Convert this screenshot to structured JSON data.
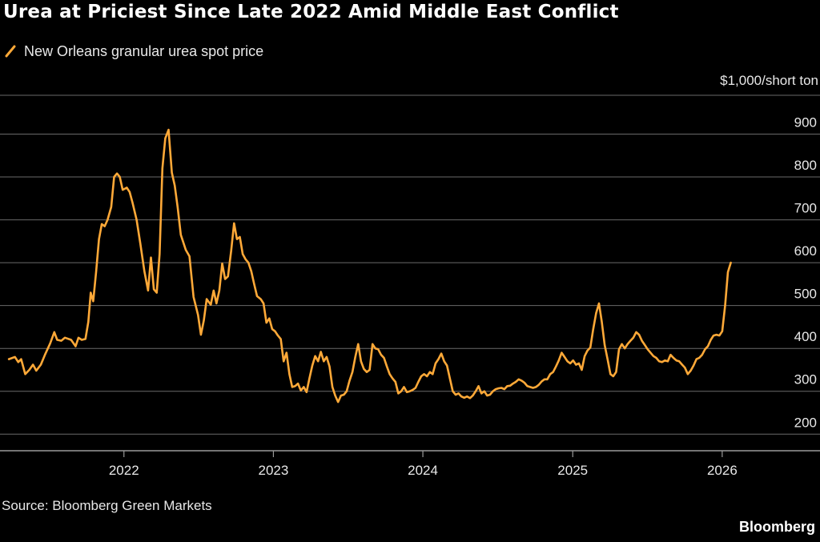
{
  "title": "Urea at Priciest Since Late 2022 Amid Middle East Conflict",
  "unit_label": "$1,000/short ton",
  "source": "Source: Bloomberg Green Markets",
  "brand": "Bloomberg",
  "colors": {
    "background": "#000000",
    "line": "#ffa938",
    "grid": "#6a6a6a",
    "text": "#e8e8e8"
  },
  "chart_data": {
    "type": "line",
    "title": "Urea at Priciest Since Late 2022 Amid Middle East Conflict",
    "ylabel": "$1,000/short ton",
    "ylim": [
      180,
      970
    ],
    "yticks": [
      200,
      300,
      400,
      500,
      600,
      700,
      800,
      900
    ],
    "xlim": [
      "2021-03-20",
      "2026-08-20"
    ],
    "xticks": [
      "2022",
      "2023",
      "2024",
      "2025",
      "2026"
    ],
    "grid": "horizontal",
    "legend": "top-left",
    "series": [
      {
        "name": "New Orleans granular urea spot price",
        "color": "#ffa938",
        "points": [
          [
            "2021-03-26",
            375
          ],
          [
            "2021-04-10",
            380
          ],
          [
            "2021-04-18",
            368
          ],
          [
            "2021-04-25",
            375
          ],
          [
            "2021-05-05",
            340
          ],
          [
            "2021-05-15",
            350
          ],
          [
            "2021-05-24",
            362
          ],
          [
            "2021-06-01",
            348
          ],
          [
            "2021-06-12",
            362
          ],
          [
            "2021-06-22",
            385
          ],
          [
            "2021-07-05",
            412
          ],
          [
            "2021-07-15",
            438
          ],
          [
            "2021-07-22",
            420
          ],
          [
            "2021-08-01",
            418
          ],
          [
            "2021-08-10",
            425
          ],
          [
            "2021-08-25",
            420
          ],
          [
            "2021-09-05",
            405
          ],
          [
            "2021-09-12",
            425
          ],
          [
            "2021-09-20",
            420
          ],
          [
            "2021-09-29",
            422
          ],
          [
            "2021-10-06",
            462
          ],
          [
            "2021-10-12",
            530
          ],
          [
            "2021-10-18",
            510
          ],
          [
            "2021-10-25",
            578
          ],
          [
            "2021-11-01",
            655
          ],
          [
            "2021-11-08",
            690
          ],
          [
            "2021-11-15",
            685
          ],
          [
            "2021-11-22",
            700
          ],
          [
            "2021-12-01",
            730
          ],
          [
            "2021-12-08",
            800
          ],
          [
            "2021-12-15",
            808
          ],
          [
            "2021-12-22",
            800
          ],
          [
            "2021-12-29",
            770
          ],
          [
            "2022-01-08",
            775
          ],
          [
            "2022-01-15",
            765
          ],
          [
            "2022-01-22",
            740
          ],
          [
            "2022-02-01",
            700
          ],
          [
            "2022-02-10",
            645
          ],
          [
            "2022-02-20",
            580
          ],
          [
            "2022-03-01",
            535
          ],
          [
            "2022-03-08",
            612
          ],
          [
            "2022-03-15",
            538
          ],
          [
            "2022-03-22",
            530
          ],
          [
            "2022-03-29",
            620
          ],
          [
            "2022-04-05",
            820
          ],
          [
            "2022-04-12",
            890
          ],
          [
            "2022-04-20",
            910
          ],
          [
            "2022-04-28",
            810
          ],
          [
            "2022-05-05",
            780
          ],
          [
            "2022-05-12",
            730
          ],
          [
            "2022-05-20",
            665
          ],
          [
            "2022-06-01",
            630
          ],
          [
            "2022-06-10",
            615
          ],
          [
            "2022-06-20",
            520
          ],
          [
            "2022-07-01",
            478
          ],
          [
            "2022-07-08",
            432
          ],
          [
            "2022-07-15",
            465
          ],
          [
            "2022-07-22",
            515
          ],
          [
            "2022-08-01",
            502
          ],
          [
            "2022-08-08",
            535
          ],
          [
            "2022-08-15",
            505
          ],
          [
            "2022-08-22",
            535
          ],
          [
            "2022-08-29",
            598
          ],
          [
            "2022-09-05",
            562
          ],
          [
            "2022-09-12",
            568
          ],
          [
            "2022-09-20",
            628
          ],
          [
            "2022-09-27",
            692
          ],
          [
            "2022-10-04",
            655
          ],
          [
            "2022-10-11",
            660
          ],
          [
            "2022-10-18",
            620
          ],
          [
            "2022-10-25",
            608
          ],
          [
            "2022-11-01",
            600
          ],
          [
            "2022-11-08",
            580
          ],
          [
            "2022-11-15",
            550
          ],
          [
            "2022-11-22",
            522
          ],
          [
            "2022-12-01",
            515
          ],
          [
            "2022-12-08",
            505
          ],
          [
            "2022-12-15",
            460
          ],
          [
            "2022-12-22",
            470
          ],
          [
            "2022-12-29",
            445
          ],
          [
            "2023-01-05",
            440
          ],
          [
            "2023-01-12",
            430
          ],
          [
            "2023-01-19",
            422
          ],
          [
            "2023-01-26",
            370
          ],
          [
            "2023-02-02",
            390
          ],
          [
            "2023-02-09",
            340
          ],
          [
            "2023-02-16",
            310
          ],
          [
            "2023-02-23",
            312
          ],
          [
            "2023-03-02",
            318
          ],
          [
            "2023-03-09",
            302
          ],
          [
            "2023-03-16",
            310
          ],
          [
            "2023-03-23",
            298
          ],
          [
            "2023-03-30",
            330
          ],
          [
            "2023-04-06",
            360
          ],
          [
            "2023-04-13",
            382
          ],
          [
            "2023-04-20",
            370
          ],
          [
            "2023-04-27",
            392
          ],
          [
            "2023-05-04",
            370
          ],
          [
            "2023-05-11",
            380
          ],
          [
            "2023-05-18",
            358
          ],
          [
            "2023-05-25",
            310
          ],
          [
            "2023-06-01",
            290
          ],
          [
            "2023-06-08",
            275
          ],
          [
            "2023-06-15",
            290
          ],
          [
            "2023-06-22",
            292
          ],
          [
            "2023-06-29",
            300
          ],
          [
            "2023-07-06",
            325
          ],
          [
            "2023-07-13",
            345
          ],
          [
            "2023-07-20",
            380
          ],
          [
            "2023-07-27",
            410
          ],
          [
            "2023-08-03",
            370
          ],
          [
            "2023-08-10",
            352
          ],
          [
            "2023-08-17",
            345
          ],
          [
            "2023-08-24",
            350
          ],
          [
            "2023-08-31",
            410
          ],
          [
            "2023-09-07",
            400
          ],
          [
            "2023-09-14",
            398
          ],
          [
            "2023-09-21",
            385
          ],
          [
            "2023-09-28",
            378
          ],
          [
            "2023-10-05",
            358
          ],
          [
            "2023-10-12",
            340
          ],
          [
            "2023-10-19",
            330
          ],
          [
            "2023-10-26",
            322
          ],
          [
            "2023-11-02",
            295
          ],
          [
            "2023-11-09",
            300
          ],
          [
            "2023-11-16",
            310
          ],
          [
            "2023-11-23",
            298
          ],
          [
            "2023-11-30",
            300
          ],
          [
            "2023-12-07",
            303
          ],
          [
            "2023-12-14",
            308
          ],
          [
            "2023-12-21",
            322
          ],
          [
            "2023-12-28",
            335
          ],
          [
            "2024-01-04",
            340
          ],
          [
            "2024-01-11",
            335
          ],
          [
            "2024-01-18",
            345
          ],
          [
            "2024-01-25",
            340
          ],
          [
            "2024-02-01",
            365
          ],
          [
            "2024-02-08",
            375
          ],
          [
            "2024-02-15",
            388
          ],
          [
            "2024-02-22",
            370
          ],
          [
            "2024-02-29",
            360
          ],
          [
            "2024-03-07",
            330
          ],
          [
            "2024-03-14",
            300
          ],
          [
            "2024-03-21",
            292
          ],
          [
            "2024-03-28",
            295
          ],
          [
            "2024-04-04",
            288
          ],
          [
            "2024-04-11",
            285
          ],
          [
            "2024-04-18",
            288
          ],
          [
            "2024-04-25",
            284
          ],
          [
            "2024-05-02",
            290
          ],
          [
            "2024-05-09",
            300
          ],
          [
            "2024-05-16",
            312
          ],
          [
            "2024-05-23",
            295
          ],
          [
            "2024-05-30",
            300
          ],
          [
            "2024-06-06",
            290
          ],
          [
            "2024-06-13",
            292
          ],
          [
            "2024-06-20",
            300
          ],
          [
            "2024-06-27",
            305
          ],
          [
            "2024-07-04",
            307
          ],
          [
            "2024-07-11",
            308
          ],
          [
            "2024-07-18",
            305
          ],
          [
            "2024-07-25",
            312
          ],
          [
            "2024-08-01",
            313
          ],
          [
            "2024-08-08",
            318
          ],
          [
            "2024-08-15",
            322
          ],
          [
            "2024-08-22",
            328
          ],
          [
            "2024-08-29",
            325
          ],
          [
            "2024-09-05",
            320
          ],
          [
            "2024-09-12",
            312
          ],
          [
            "2024-09-19",
            310
          ],
          [
            "2024-09-26",
            308
          ],
          [
            "2024-10-03",
            310
          ],
          [
            "2024-10-10",
            315
          ],
          [
            "2024-10-17",
            323
          ],
          [
            "2024-10-24",
            328
          ],
          [
            "2024-10-31",
            328
          ],
          [
            "2024-11-07",
            340
          ],
          [
            "2024-11-14",
            345
          ],
          [
            "2024-11-21",
            358
          ],
          [
            "2024-11-28",
            372
          ],
          [
            "2024-12-05",
            390
          ],
          [
            "2024-12-12",
            380
          ],
          [
            "2024-12-19",
            370
          ],
          [
            "2024-12-26",
            365
          ],
          [
            "2025-01-02",
            372
          ],
          [
            "2025-01-09",
            362
          ],
          [
            "2025-01-16",
            365
          ],
          [
            "2025-01-23",
            350
          ],
          [
            "2025-01-30",
            382
          ],
          [
            "2025-02-06",
            395
          ],
          [
            "2025-02-13",
            402
          ],
          [
            "2025-02-20",
            445
          ],
          [
            "2025-02-27",
            482
          ],
          [
            "2025-03-06",
            505
          ],
          [
            "2025-03-13",
            462
          ],
          [
            "2025-03-20",
            408
          ],
          [
            "2025-03-27",
            375
          ],
          [
            "2025-04-03",
            340
          ],
          [
            "2025-04-10",
            335
          ],
          [
            "2025-04-17",
            345
          ],
          [
            "2025-04-24",
            398
          ],
          [
            "2025-05-01",
            410
          ],
          [
            "2025-05-08",
            400
          ],
          [
            "2025-05-15",
            410
          ],
          [
            "2025-05-22",
            418
          ],
          [
            "2025-05-29",
            425
          ],
          [
            "2025-06-05",
            438
          ],
          [
            "2025-06-12",
            432
          ],
          [
            "2025-06-19",
            418
          ],
          [
            "2025-06-26",
            408
          ],
          [
            "2025-07-03",
            398
          ],
          [
            "2025-07-10",
            390
          ],
          [
            "2025-07-17",
            382
          ],
          [
            "2025-07-24",
            378
          ],
          [
            "2025-07-31",
            370
          ],
          [
            "2025-08-07",
            368
          ],
          [
            "2025-08-14",
            372
          ],
          [
            "2025-08-21",
            370
          ],
          [
            "2025-08-28",
            385
          ],
          [
            "2025-09-04",
            378
          ],
          [
            "2025-09-11",
            372
          ],
          [
            "2025-09-18",
            370
          ],
          [
            "2025-09-25",
            362
          ],
          [
            "2025-10-02",
            355
          ],
          [
            "2025-10-09",
            340
          ],
          [
            "2025-10-16",
            348
          ],
          [
            "2025-10-23",
            360
          ],
          [
            "2025-10-30",
            375
          ],
          [
            "2025-11-06",
            378
          ],
          [
            "2025-11-13",
            385
          ],
          [
            "2025-11-20",
            398
          ],
          [
            "2025-11-27",
            405
          ],
          [
            "2025-12-04",
            420
          ],
          [
            "2025-12-11",
            430
          ],
          [
            "2025-12-18",
            432
          ],
          [
            "2025-12-25",
            430
          ],
          [
            "2026-01-01",
            440
          ],
          [
            "2026-01-08",
            500
          ],
          [
            "2026-01-15",
            578
          ],
          [
            "2026-01-22",
            600
          ]
        ]
      }
    ]
  }
}
